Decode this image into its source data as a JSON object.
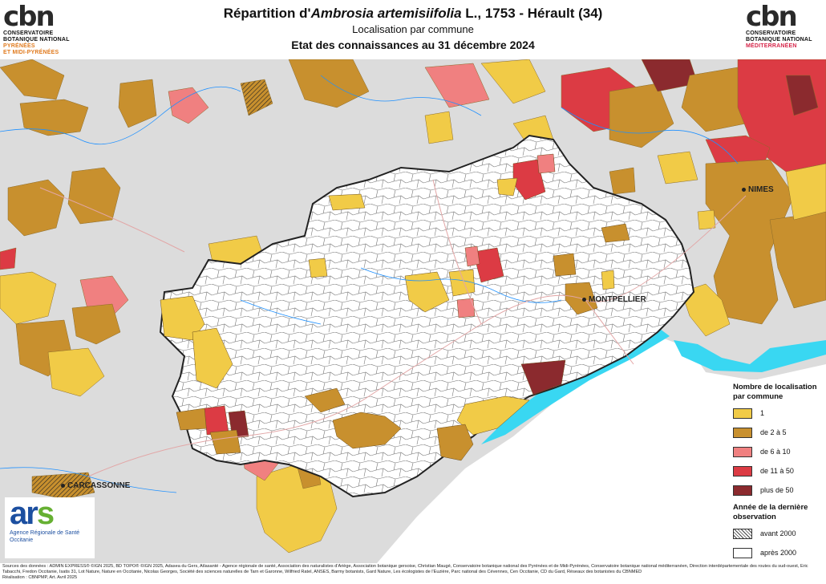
{
  "header": {
    "title_prefix": "Répartition d'",
    "title_taxon": "Ambrosia artemisiifolia",
    "title_suffix": " L., 1753 - Hérault (34)",
    "subtitle": "Localisation par commune",
    "date_line": "Etat des connaissances au 31 décembre 2024"
  },
  "logos": {
    "left": {
      "mark": "cbn",
      "line1": "CONSERVATOIRE",
      "line2": "BOTANIQUE NATIONAL",
      "line3": "PYRÉNÉES",
      "line4": "ET MIDI-PYRÉNÉES"
    },
    "right": {
      "mark": "cbn",
      "line1": "CONSERVATOIRE",
      "line2": "BOTANIQUE NATIONAL",
      "line3": "MÉDITERRANÉEN"
    },
    "ars": {
      "mark_a": "ar",
      "mark_b": "s",
      "line1": "Agence Régionale de Santé",
      "line2": "Occitanie"
    }
  },
  "cities": {
    "nimes": "NIMES",
    "montpellier": "MONTPELLIER",
    "carcassonne": "CARCASSONNE"
  },
  "legend": {
    "heading": "Nombre de localisation par commune",
    "classes": [
      {
        "label": "1",
        "color": "#f1cb47"
      },
      {
        "label": "de 2 à 5",
        "color": "#c8902e"
      },
      {
        "label": "de 6 à 10",
        "color": "#f08080"
      },
      {
        "label": "de 11 à 50",
        "color": "#dc3b44"
      },
      {
        "label": "plus de 50",
        "color": "#8b2a2e"
      }
    ],
    "year_heading": "Année de la dernière observation",
    "years": [
      {
        "label": "avant 2000"
      },
      {
        "label": "après 2000"
      }
    ]
  },
  "colors": {
    "sea": "#ffffff",
    "lagoon": "#39d7f2",
    "land": "#dcdcdc",
    "herault": "#ffffff"
  },
  "footer": {
    "sources": "Sources des données : ADMIN EXPRESS® ©IGN 2025, BD TOPO® ©IGN 2025, Adasea du Gers, Atlasanté - Agence régionale de santé, Association des naturalistes d'Ariège, Association botanique gersoise, Christian Maugé, Conservatoire botanique national des Pyrénées et de Midi-Pyrénées, Conservatoire botanique national méditerranéen, Direction interdépartementale des routes du sud-ouest, Eric Tabacchi, Fredon Occitanie, Isatis 31, Lot Nature, Nature en Occitanie, Nicolas Georges, Société des sciences naturelles de Tarn et Garonne, Wilfried Ratel, ANSES, Barmy botanists, Gard Nature, Les écologistes de l'Euzière, Parc national des Cévennes, Cen Occitanie, CD du Gard, Réseaux des botanistes du CBNMED",
    "realisation": "Réalisation : CBNPMP, Art. Avril 2025"
  }
}
